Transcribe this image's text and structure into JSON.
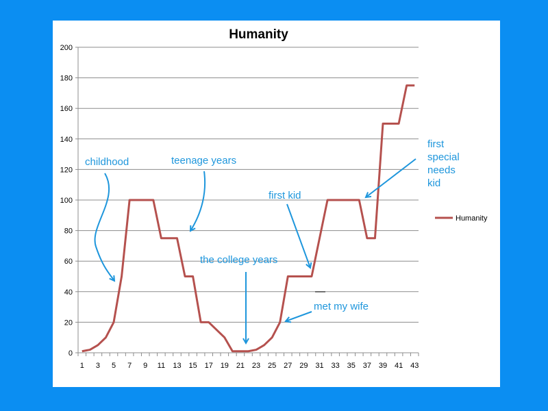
{
  "chart_data": {
    "type": "line",
    "title": "Humanity",
    "xlabel": "",
    "ylabel": "",
    "ylim": [
      0,
      200
    ],
    "yticks": [
      0,
      20,
      40,
      60,
      80,
      100,
      120,
      140,
      160,
      180,
      200
    ],
    "x": [
      1,
      2,
      3,
      4,
      5,
      6,
      7,
      8,
      9,
      10,
      11,
      12,
      13,
      14,
      15,
      16,
      17,
      18,
      19,
      20,
      21,
      22,
      23,
      24,
      25,
      26,
      27,
      28,
      29,
      30,
      31,
      32,
      33,
      34,
      35,
      36,
      37,
      38,
      39,
      40,
      41,
      42,
      43
    ],
    "xtick_labels": [
      "1",
      "3",
      "5",
      "7",
      "9",
      "11",
      "13",
      "15",
      "17",
      "19",
      "21",
      "23",
      "25",
      "27",
      "29",
      "31",
      "33",
      "35",
      "37",
      "39",
      "41",
      "43"
    ],
    "grid": true,
    "legend": {
      "position": "right",
      "entries": [
        "Humanity"
      ]
    },
    "series": [
      {
        "name": "Humanity",
        "color": "#b5514e",
        "values": [
          1,
          2,
          5,
          10,
          20,
          50,
          100,
          100,
          100,
          100,
          75,
          75,
          75,
          50,
          50,
          20,
          20,
          15,
          10,
          1,
          1,
          1,
          2,
          5,
          10,
          20,
          50,
          50,
          50,
          50,
          75,
          100,
          100,
          100,
          100,
          100,
          75,
          75,
          150,
          150,
          150,
          175,
          175
        ]
      }
    ],
    "annotations": [
      {
        "text": "childhood",
        "points_to_x": 5
      },
      {
        "text": "teenage years",
        "points_to_x": 15
      },
      {
        "text": "the college years",
        "points_to_x": 22
      },
      {
        "text": "first kid",
        "points_to_x": 30
      },
      {
        "text": "met my wife",
        "points_to_x": 26
      },
      {
        "text": "first special needs kid",
        "lines": [
          "first",
          "special",
          "needs",
          "kid"
        ],
        "points_to_x": 36
      }
    ],
    "annotation_color": "#1e96dc"
  }
}
